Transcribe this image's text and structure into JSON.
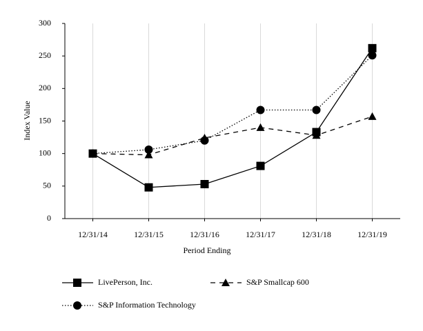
{
  "chart_data": {
    "type": "line",
    "x_label": "Period Ending",
    "y_label": "Index Value",
    "categories": [
      "12/31/14",
      "12/31/15",
      "12/31/16",
      "12/31/17",
      "12/31/18",
      "12/31/19"
    ],
    "series": [
      {
        "name": "LivePerson, Inc.",
        "color": "#000000",
        "marker": "square",
        "dash": "solid",
        "values": [
          100,
          48,
          53,
          81,
          133,
          262
        ]
      },
      {
        "name": "S&P Smallcap 600",
        "color": "#000000",
        "marker": "triangle",
        "dash": "dashed",
        "values": [
          100,
          98,
          124,
          140,
          128,
          157
        ]
      },
      {
        "name": "S&P Information Technology",
        "color": "#000000",
        "marker": "circle",
        "dash": "dotted",
        "values": [
          100,
          106,
          120,
          167,
          167,
          251
        ]
      }
    ],
    "ylim": [
      0,
      300
    ],
    "yticks": [
      0,
      50,
      100,
      150,
      200,
      250,
      300
    ],
    "grid": "x"
  }
}
